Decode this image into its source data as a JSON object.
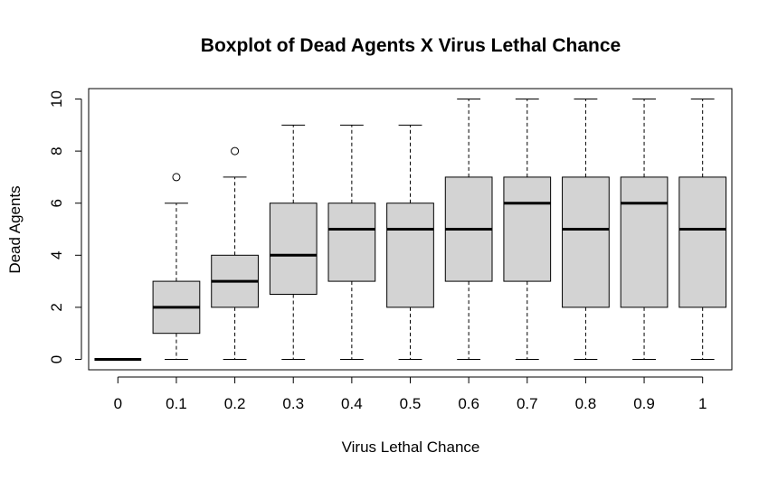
{
  "chart_data": {
    "type": "boxplot",
    "title": "Boxplot of Dead Agents X Virus Lethal Chance",
    "xlabel": "Virus Lethal Chance",
    "ylabel": "Dead Agents",
    "ylim": [
      -0.4,
      10.4
    ],
    "yticks": [
      0,
      2,
      4,
      6,
      8,
      10
    ],
    "grid": false,
    "legend": "none",
    "colors": {
      "box_fill": "#d3d3d3",
      "stroke": "#000000"
    },
    "categories": [
      "0",
      "0.1",
      "0.2",
      "0.3",
      "0.4",
      "0.5",
      "0.6",
      "0.7",
      "0.8",
      "0.9",
      "1"
    ],
    "boxes": [
      {
        "min": 0,
        "q1": 0,
        "median": 0,
        "q3": 0,
        "max": 0,
        "outliers": []
      },
      {
        "min": 0,
        "q1": 1,
        "median": 2,
        "q3": 3,
        "max": 6,
        "outliers": [
          7
        ]
      },
      {
        "min": 0,
        "q1": 2,
        "median": 3,
        "q3": 4,
        "max": 7,
        "outliers": [
          8
        ]
      },
      {
        "min": 0,
        "q1": 2.5,
        "median": 4,
        "q3": 6,
        "max": 9,
        "outliers": []
      },
      {
        "min": 0,
        "q1": 3,
        "median": 5,
        "q3": 6,
        "max": 9,
        "outliers": []
      },
      {
        "min": 0,
        "q1": 2,
        "median": 5,
        "q3": 6,
        "max": 9,
        "outliers": []
      },
      {
        "min": 0,
        "q1": 3,
        "median": 5,
        "q3": 7,
        "max": 10,
        "outliers": []
      },
      {
        "min": 0,
        "q1": 3,
        "median": 6,
        "q3": 7,
        "max": 10,
        "outliers": []
      },
      {
        "min": 0,
        "q1": 2,
        "median": 5,
        "q3": 7,
        "max": 10,
        "outliers": []
      },
      {
        "min": 0,
        "q1": 2,
        "median": 6,
        "q3": 7,
        "max": 10,
        "outliers": []
      },
      {
        "min": 0,
        "q1": 2,
        "median": 5,
        "q3": 7,
        "max": 10,
        "outliers": []
      }
    ]
  }
}
